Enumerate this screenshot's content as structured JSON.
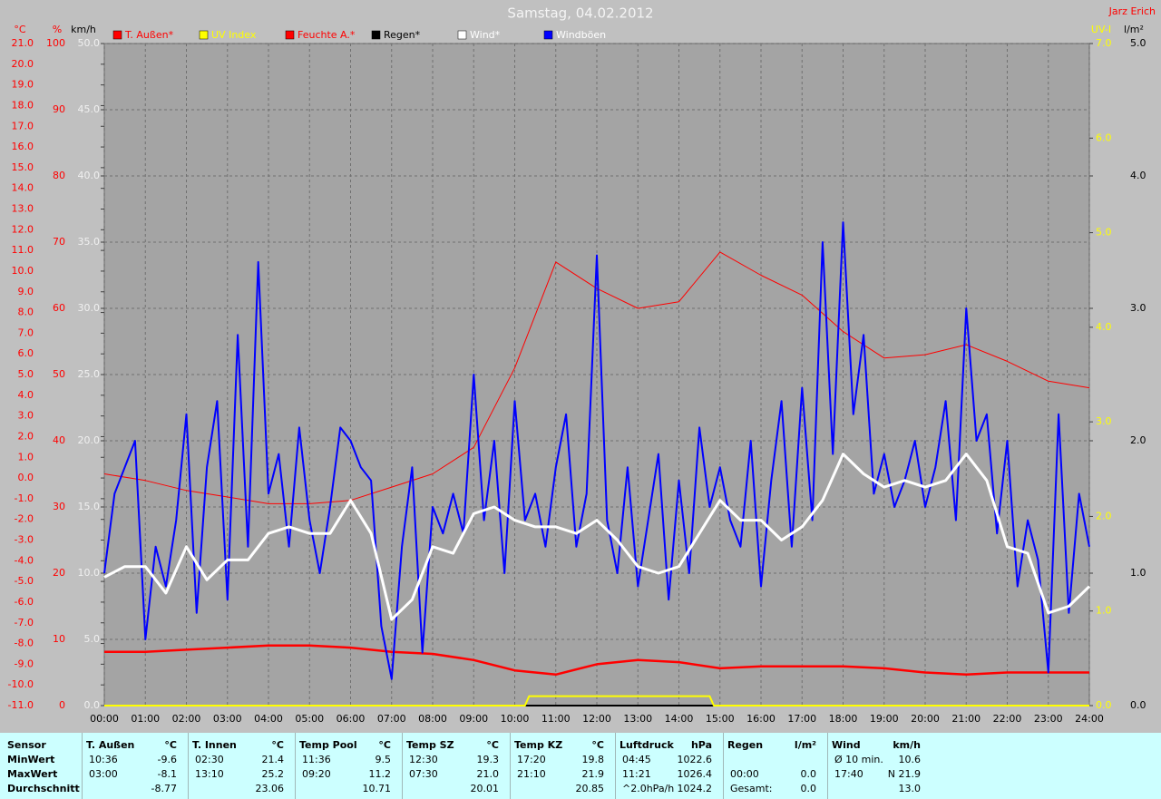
{
  "chart_data": {
    "type": "line",
    "title": "Samstag, 04.02.2012",
    "author": "Jarz Erich",
    "background": "#c0c0c0",
    "plot_background": "#a4a4a4",
    "grid": true,
    "xlim": [
      0,
      24
    ],
    "xticks": [
      {
        "value": 0,
        "label": "00:00"
      },
      {
        "value": 1,
        "label": "01:00"
      },
      {
        "value": 2,
        "label": "02:00"
      },
      {
        "value": 3,
        "label": "03:00"
      },
      {
        "value": 4,
        "label": "04:00"
      },
      {
        "value": 5,
        "label": "05:00"
      },
      {
        "value": 6,
        "label": "06:00"
      },
      {
        "value": 7,
        "label": "07:00"
      },
      {
        "value": 8,
        "label": "08:00"
      },
      {
        "value": 9,
        "label": "09:00"
      },
      {
        "value": 10,
        "label": "10:00"
      },
      {
        "value": 11,
        "label": "11:00"
      },
      {
        "value": 12,
        "label": "12:00"
      },
      {
        "value": 13,
        "label": "13:00"
      },
      {
        "value": 14,
        "label": "14:00"
      },
      {
        "value": 15,
        "label": "15:00"
      },
      {
        "value": 16,
        "label": "16:00"
      },
      {
        "value": 17,
        "label": "17:00"
      },
      {
        "value": 18,
        "label": "18:00"
      },
      {
        "value": 19,
        "label": "19:00"
      },
      {
        "value": 20,
        "label": "20:00"
      },
      {
        "value": 21,
        "label": "21:00"
      },
      {
        "value": 22,
        "label": "22:00"
      },
      {
        "value": 23,
        "label": "23:00"
      },
      {
        "value": 24,
        "label": "24:00"
      }
    ],
    "axes": [
      {
        "label": "°C",
        "color": "#ff0000",
        "lim": [
          -11,
          21
        ],
        "ticks": [
          {
            "value": -11,
            "label": "-11.0"
          },
          {
            "value": -10,
            "label": "-10.0"
          },
          {
            "value": -9,
            "label": "-9.0"
          },
          {
            "value": -8,
            "label": "-8.0"
          },
          {
            "value": -7,
            "label": "-7.0"
          },
          {
            "value": -6,
            "label": "-6.0"
          },
          {
            "value": -5,
            "label": "-5.0"
          },
          {
            "value": -4,
            "label": "-4.0"
          },
          {
            "value": -3,
            "label": "-3.0"
          },
          {
            "value": -2,
            "label": "-2.0"
          },
          {
            "value": -1,
            "label": "-1.0"
          },
          {
            "value": 0,
            "label": "0.0"
          },
          {
            "value": 1,
            "label": "1.0"
          },
          {
            "value": 2,
            "label": "2.0"
          },
          {
            "value": 3,
            "label": "3.0"
          },
          {
            "value": 4,
            "label": "4.0"
          },
          {
            "value": 5,
            "label": "5.0"
          },
          {
            "value": 6,
            "label": "6.0"
          },
          {
            "value": 7,
            "label": "7.0"
          },
          {
            "value": 8,
            "label": "8.0"
          },
          {
            "value": 9,
            "label": "9.0"
          },
          {
            "value": 10,
            "label": "10.0"
          },
          {
            "value": 11,
            "label": "11.0"
          },
          {
            "value": 12,
            "label": "12.0"
          },
          {
            "value": 13,
            "label": "13.0"
          },
          {
            "value": 14,
            "label": "14.0"
          },
          {
            "value": 15,
            "label": "15.0"
          },
          {
            "value": 16,
            "label": "16.0"
          },
          {
            "value": 17,
            "label": "17.0"
          },
          {
            "value": 18,
            "label": "18.0"
          },
          {
            "value": 19,
            "label": "19.0"
          },
          {
            "value": 20,
            "label": "20.0"
          },
          {
            "value": 21,
            "label": "21.0"
          }
        ]
      },
      {
        "label": "%",
        "color": "#ff0000",
        "lim": [
          0,
          100
        ],
        "ticks": [
          0,
          10,
          20,
          30,
          40,
          50,
          60,
          70,
          80,
          90,
          100
        ]
      },
      {
        "label": "km/h",
        "color": "#f0f0f0",
        "title_color": "#000000",
        "lim": [
          0,
          50
        ],
        "ticks": [
          {
            "value": 0,
            "label": "0.0"
          },
          {
            "value": 5,
            "label": "5.0"
          },
          {
            "value": 10,
            "label": "10.0"
          },
          {
            "value": 15,
            "label": "15.0"
          },
          {
            "value": 20,
            "label": "20.0"
          },
          {
            "value": 25,
            "label": "25.0"
          },
          {
            "value": 30,
            "label": "30.0"
          },
          {
            "value": 35,
            "label": "35.0"
          },
          {
            "value": 40,
            "label": "40.0"
          },
          {
            "value": 45,
            "label": "45.0"
          },
          {
            "value": 50,
            "label": "50.0"
          }
        ]
      },
      {
        "label": "UV-I",
        "color": "#ffff00",
        "lim": [
          0,
          7
        ],
        "ticks": [
          {
            "value": 0,
            "label": "0.0"
          },
          {
            "value": 1,
            "label": "1.0"
          },
          {
            "value": 2,
            "label": "2.0"
          },
          {
            "value": 3,
            "label": "3.0"
          },
          {
            "value": 4,
            "label": "4.0"
          },
          {
            "value": 5,
            "label": "5.0"
          },
          {
            "value": 6,
            "label": "6.0"
          },
          {
            "value": 7,
            "label": "7.0"
          }
        ]
      },
      {
        "label": "l/m²",
        "color": "#000000",
        "lim": [
          0,
          5
        ],
        "ticks": [
          {
            "value": 0,
            "label": "0.0"
          },
          {
            "value": 1,
            "label": "1.0"
          },
          {
            "value": 2,
            "label": "2.0"
          },
          {
            "value": 3,
            "label": "3.0"
          },
          {
            "value": 4,
            "label": "4.0"
          },
          {
            "value": 5,
            "label": "5.0"
          }
        ]
      }
    ],
    "series": [
      {
        "name": "T. Außen*",
        "color": "#ff0000",
        "label_color": "#ff0000",
        "axis": 0,
        "x": [
          0,
          1,
          2,
          3,
          4,
          5,
          6,
          7,
          8,
          9,
          10,
          11,
          12,
          13,
          14,
          15,
          16,
          17,
          18,
          19,
          20,
          21,
          22,
          23,
          24
        ],
        "values": [
          -8.4,
          -8.4,
          -8.3,
          -8.2,
          -8.1,
          -8.1,
          -8.2,
          -8.4,
          -8.5,
          -8.8,
          -9.3,
          -9.5,
          -9.0,
          -8.8,
          -8.9,
          -9.2,
          -9.1,
          -9.1,
          -9.1,
          -9.2,
          -9.4,
          -9.5,
          -9.4,
          -9.4,
          -9.4
        ]
      },
      {
        "name": "UV Index",
        "color": "#ffff00",
        "label_color": "#ffff00",
        "axis": 3,
        "x": [
          0,
          10.25,
          10.35,
          14.75,
          14.85,
          24
        ],
        "values": [
          0,
          0,
          0.1,
          0.1,
          0,
          0
        ]
      },
      {
        "name": "Feuchte A.*",
        "color": "#ff0000",
        "label_color": "#ff0000",
        "axis": 1,
        "x": [
          0,
          1,
          2,
          3,
          4,
          5,
          6,
          7,
          8,
          9,
          10,
          11,
          12,
          13,
          14,
          15,
          16,
          17,
          18,
          19,
          20,
          21,
          22,
          23,
          24
        ],
        "values": [
          35,
          34,
          32.5,
          31.5,
          30.5,
          30.5,
          31,
          33,
          35,
          39,
          51,
          67,
          63,
          60,
          61,
          68.5,
          65,
          62,
          56.5,
          52.5,
          53,
          54.5,
          52,
          49,
          48
        ]
      },
      {
        "name": "Regen*",
        "color": "#000000",
        "label_color": "#000000",
        "axis": 4,
        "x": [
          0,
          24
        ],
        "values": [
          0,
          0
        ]
      },
      {
        "name": "Wind*",
        "color": "#ffffff",
        "label_color": "#ffffff",
        "axis": 2,
        "x": [
          0,
          0.5,
          1,
          1.5,
          2,
          2.5,
          3,
          3.5,
          4,
          4.5,
          5,
          5.5,
          6,
          6.5,
          7,
          7.5,
          8,
          8.5,
          9,
          9.5,
          10,
          10.5,
          11,
          11.5,
          12,
          12.5,
          13,
          13.5,
          14,
          14.5,
          15,
          15.5,
          16,
          16.5,
          17,
          17.5,
          18,
          18.5,
          19,
          19.5,
          20,
          20.5,
          21,
          21.5,
          22,
          22.5,
          23,
          23.5,
          24
        ],
        "values": [
          9.7,
          10.5,
          10.5,
          8.5,
          12,
          9.5,
          11,
          11,
          13,
          13.5,
          13,
          13,
          15.5,
          13,
          6.5,
          8,
          12,
          11.5,
          14.5,
          15,
          14,
          13.5,
          13.5,
          13,
          14,
          12.5,
          10.5,
          10,
          10.5,
          13,
          15.5,
          14,
          14,
          12.5,
          13.5,
          15.5,
          19,
          17.5,
          16.5,
          17,
          16.5,
          17,
          19,
          17,
          12,
          11.5,
          7,
          7.5,
          9
        ]
      },
      {
        "name": "Windböen",
        "color": "#0000ff",
        "label_color": "#ffffff",
        "axis": 2,
        "x": [
          0,
          0.25,
          0.5,
          0.75,
          1,
          1.25,
          1.5,
          1.75,
          2,
          2.25,
          2.5,
          2.75,
          3,
          3.25,
          3.5,
          3.75,
          4,
          4.25,
          4.5,
          4.75,
          5,
          5.25,
          5.5,
          5.75,
          6,
          6.25,
          6.5,
          6.75,
          7,
          7.25,
          7.5,
          7.75,
          8,
          8.25,
          8.5,
          8.75,
          9,
          9.25,
          9.5,
          9.75,
          10,
          10.25,
          10.5,
          10.75,
          11,
          11.25,
          11.5,
          11.75,
          12,
          12.25,
          12.5,
          12.75,
          13,
          13.25,
          13.5,
          13.75,
          14,
          14.25,
          14.5,
          14.75,
          15,
          15.25,
          15.5,
          15.75,
          16,
          16.25,
          16.5,
          16.75,
          17,
          17.25,
          17.5,
          17.75,
          18,
          18.25,
          18.5,
          18.75,
          19,
          19.25,
          19.5,
          19.75,
          20,
          20.25,
          20.5,
          20.75,
          21,
          21.25,
          21.5,
          21.75,
          22,
          22.25,
          22.5,
          22.75,
          23,
          23.25,
          23.5,
          23.75,
          24
        ],
        "values": [
          10,
          16,
          18,
          20,
          5,
          12,
          9,
          14,
          22,
          7,
          18,
          23,
          8,
          28,
          12,
          33.5,
          16,
          19,
          12,
          21,
          14,
          10,
          15,
          21,
          20,
          18,
          17,
          6,
          2,
          12,
          18,
          4,
          15,
          13,
          16,
          13,
          25,
          14,
          20,
          10,
          23,
          14,
          16,
          12,
          18,
          22,
          12,
          16,
          34,
          14,
          10,
          18,
          9,
          14,
          19,
          8,
          17,
          10,
          21,
          15,
          18,
          14,
          12,
          20,
          9,
          17,
          23,
          12,
          24,
          14,
          35,
          19,
          36.5,
          22,
          28,
          16,
          19,
          15,
          17,
          20,
          15,
          18,
          23,
          14,
          30,
          20,
          22,
          13,
          20,
          9,
          14,
          11,
          2.5,
          22,
          7,
          16,
          12
        ]
      }
    ]
  },
  "table": {
    "row_labels": [
      "Sensor",
      "MinWert",
      "MaxWert",
      "Durchschnitt"
    ],
    "groups": [
      {
        "name": "T. Außen",
        "unit": "°C",
        "rows": [
          [
            "10:36",
            "-9.6"
          ],
          [
            "03:00",
            "-8.1"
          ],
          [
            null,
            "-8.77"
          ]
        ]
      },
      {
        "name": "T. Innen",
        "unit": "°C",
        "rows": [
          [
            "02:30",
            "21.4"
          ],
          [
            "13:10",
            "25.2"
          ],
          [
            null,
            "23.06"
          ]
        ]
      },
      {
        "name": "Temp Pool",
        "unit": "°C",
        "rows": [
          [
            "11:36",
            "9.5"
          ],
          [
            "09:20",
            "11.2"
          ],
          [
            null,
            "10.71"
          ]
        ]
      },
      {
        "name": "Temp SZ",
        "unit": "°C",
        "rows": [
          [
            "12:30",
            "19.3"
          ],
          [
            "07:30",
            "21.0"
          ],
          [
            null,
            "20.01"
          ]
        ]
      },
      {
        "name": "Temp KZ",
        "unit": "°C",
        "rows": [
          [
            "17:20",
            "19.8"
          ],
          [
            "21:10",
            "21.9"
          ],
          [
            null,
            "20.85"
          ]
        ]
      },
      {
        "name": "Luftdruck",
        "unit": "hPa",
        "rows": [
          [
            "04:45",
            "1022.6"
          ],
          [
            "11:21",
            "1026.4"
          ],
          [
            "^2.0hPa/h",
            "1024.2"
          ]
        ]
      },
      {
        "name": "Regen",
        "unit": "l/m²",
        "rows": [
          [
            null,
            null
          ],
          [
            "00:00",
            "0.0"
          ],
          [
            "Gesamt:",
            "0.0"
          ]
        ]
      },
      {
        "name": "Wind",
        "unit": "km/h",
        "rows": [
          [
            "Ø 10 min.",
            "10.6"
          ],
          [
            "17:40",
            "N 21.9"
          ],
          [
            null,
            "13.0"
          ]
        ]
      }
    ]
  }
}
